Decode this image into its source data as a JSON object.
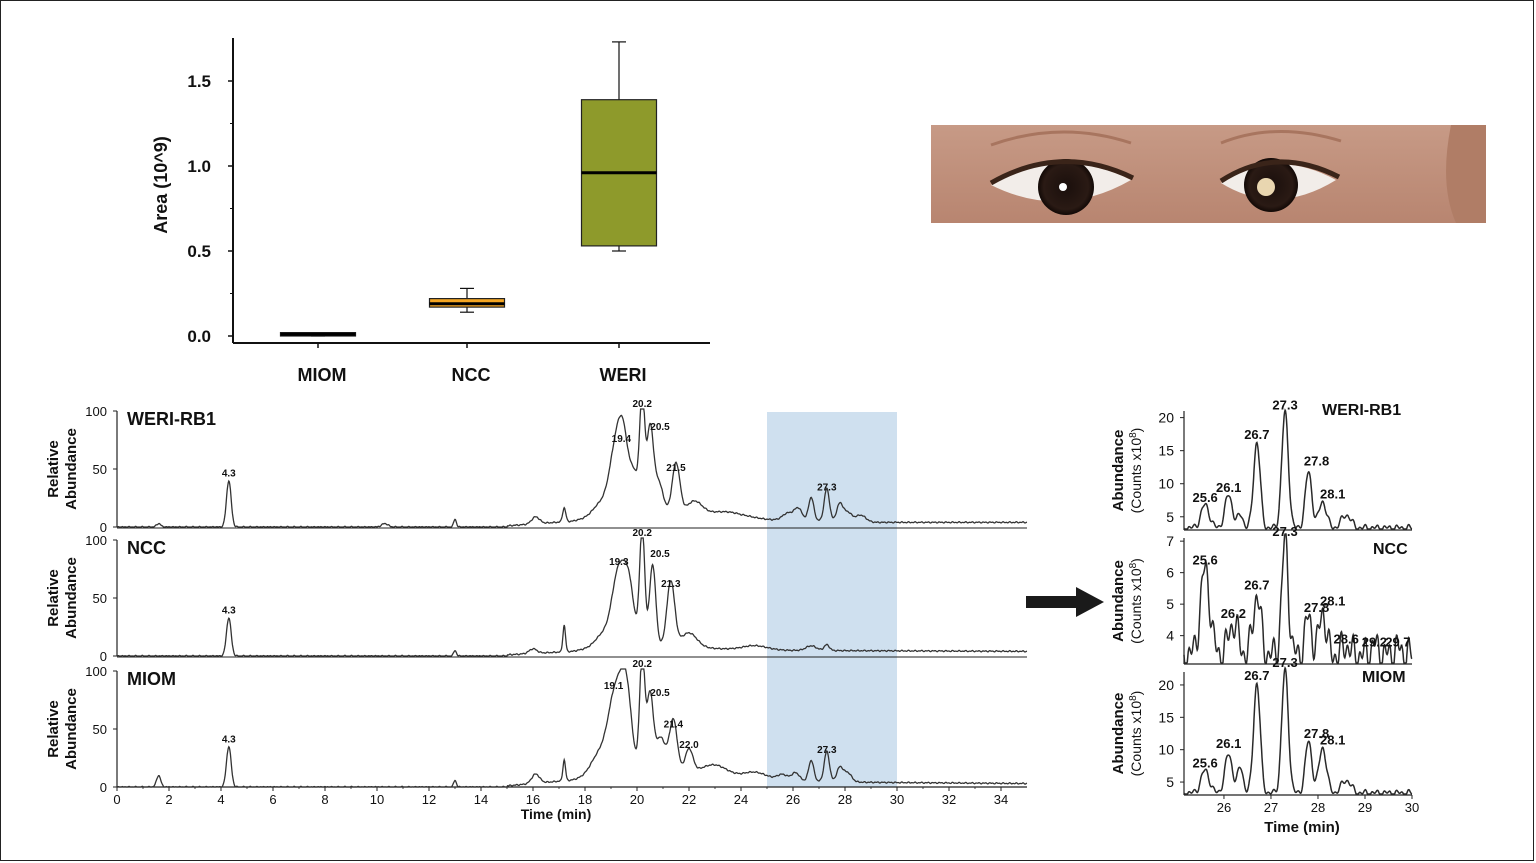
{
  "colors": {
    "miom_box": "#bfbfbf",
    "ncc_box": "#f5a623",
    "weri_box": "#8e9a2b",
    "highlight": "#cfe0ef",
    "trace": "#333333"
  },
  "photo": {
    "icon": "child-eyes-leukocoria-photo"
  },
  "arrow": {
    "icon": "right-arrow-icon"
  },
  "chart_data": [
    {
      "type": "box",
      "ylabel": "Area (10^9)",
      "ylim": [
        0,
        1.75
      ],
      "yticks": [
        "0.0",
        "0.5",
        "1.0",
        "1.5"
      ],
      "categories": [
        "MIOM",
        "NCC",
        "WERI"
      ],
      "boxes": [
        {
          "name": "MIOM",
          "min": 0.0,
          "q1": 0.0,
          "median": 0.01,
          "q3": 0.02,
          "max": 0.02
        },
        {
          "name": "NCC",
          "min": 0.14,
          "q1": 0.17,
          "median": 0.19,
          "q3": 0.22,
          "max": 0.28
        },
        {
          "name": "WERI",
          "min": 0.5,
          "q1": 0.53,
          "median": 0.96,
          "q3": 1.39,
          "max": 1.73
        }
      ]
    },
    {
      "type": "line",
      "xlabel": "Time (min)",
      "ylabel": "Relative Abundance",
      "xlim": [
        0,
        35
      ],
      "ylim": [
        0,
        100
      ],
      "xticks": [
        "0",
        "2",
        "4",
        "6",
        "8",
        "10",
        "12",
        "14",
        "16",
        "18",
        "20",
        "22",
        "24",
        "26",
        "28",
        "30",
        "32",
        "34"
      ],
      "yticks": [
        "0",
        "50",
        "100"
      ],
      "highlight_range": [
        25,
        30
      ],
      "panels": [
        {
          "name": "WERI-RB1",
          "peak_labels": [
            {
              "x": 4.3,
              "y": 40,
              "label": "4.3"
            },
            {
              "x": 19.4,
              "y": 70,
              "label": "19.4"
            },
            {
              "x": 20.2,
              "y": 100,
              "label": "20.2"
            },
            {
              "x": 20.5,
              "y": 80,
              "label": "20.5"
            },
            {
              "x": 21.5,
              "y": 45,
              "label": "21.5"
            },
            {
              "x": 27.3,
              "y": 28,
              "label": "27.3"
            }
          ],
          "peaks": [
            [
              1.6,
              3,
              0.08
            ],
            [
              4.3,
              40,
              0.09
            ],
            [
              10.3,
              3,
              0.12
            ],
            [
              13,
              7,
              0.05
            ],
            [
              16.1,
              6,
              0.15
            ],
            [
              17.2,
              12,
              0.06
            ],
            [
              18.6,
              10,
              0.3
            ],
            [
              19.2,
              55,
              0.25
            ],
            [
              19.5,
              50,
              0.2
            ],
            [
              19.9,
              30,
              0.15
            ],
            [
              20.2,
              100,
              0.1
            ],
            [
              20.5,
              68,
              0.12
            ],
            [
              20.8,
              30,
              0.2
            ],
            [
              21.5,
              45,
              0.15
            ],
            [
              22.2,
              12,
              0.3
            ],
            [
              23.5,
              7,
              0.8
            ],
            [
              25.8,
              6,
              0.2
            ],
            [
              26.2,
              10,
              0.15
            ],
            [
              26.7,
              20,
              0.1
            ],
            [
              27.3,
              28,
              0.1
            ],
            [
              27.8,
              15,
              0.12
            ],
            [
              28.1,
              8,
              0.15
            ],
            [
              28.6,
              6,
              0.2
            ]
          ],
          "baseline": [
            [
              15,
              1
            ],
            [
              17.5,
              5
            ],
            [
              19,
              12
            ],
            [
              22,
              9
            ],
            [
              24,
              5
            ],
            [
              26,
              6
            ],
            [
              29,
              4
            ],
            [
              35,
              4
            ]
          ]
        },
        {
          "name": "NCC",
          "peak_labels": [
            {
              "x": 4.3,
              "y": 33,
              "label": "4.3"
            },
            {
              "x": 19.3,
              "y": 75,
              "label": "19.3"
            },
            {
              "x": 20.2,
              "y": 100,
              "label": "20.2"
            },
            {
              "x": 20.5,
              "y": 82,
              "label": "20.5"
            },
            {
              "x": 21.3,
              "y": 56,
              "label": "21.3"
            }
          ],
          "peaks": [
            [
              4.3,
              33,
              0.09
            ],
            [
              13,
              5,
              0.05
            ],
            [
              16,
              4,
              0.15
            ],
            [
              17.2,
              23,
              0.05
            ],
            [
              18.7,
              10,
              0.3
            ],
            [
              19.3,
              62,
              0.25
            ],
            [
              19.7,
              45,
              0.2
            ],
            [
              20.2,
              100,
              0.1
            ],
            [
              20.6,
              70,
              0.12
            ],
            [
              21.3,
              56,
              0.15
            ],
            [
              22,
              12,
              0.3
            ],
            [
              24.5,
              4,
              0.5
            ],
            [
              26.7,
              4,
              0.2
            ],
            [
              27.3,
              5,
              0.1
            ]
          ],
          "baseline": [
            [
              15,
              1
            ],
            [
              17.5,
              4
            ],
            [
              19,
              10
            ],
            [
              22,
              8
            ],
            [
              24,
              5
            ],
            [
              35,
              4
            ]
          ]
        },
        {
          "name": "MIOM",
          "peak_labels": [
            {
              "x": 4.3,
              "y": 35,
              "label": "4.3"
            },
            {
              "x": 19.1,
              "y": 81,
              "label": "19.1"
            },
            {
              "x": 20.2,
              "y": 100,
              "label": "20.2"
            },
            {
              "x": 20.5,
              "y": 75,
              "label": "20.5"
            },
            {
              "x": 21.4,
              "y": 48,
              "label": "21.4"
            },
            {
              "x": 22.0,
              "y": 30,
              "label": "22.0"
            },
            {
              "x": 27.3,
              "y": 26,
              "label": "27.3"
            }
          ],
          "peaks": [
            [
              1.6,
              10,
              0.08
            ],
            [
              4.3,
              35,
              0.09
            ],
            [
              13,
              6,
              0.05
            ],
            [
              16.1,
              8,
              0.15
            ],
            [
              17.2,
              18,
              0.05
            ],
            [
              18.5,
              15,
              0.3
            ],
            [
              19.2,
              70,
              0.3
            ],
            [
              19.6,
              55,
              0.2
            ],
            [
              20.2,
              100,
              0.1
            ],
            [
              20.5,
              65,
              0.12
            ],
            [
              20.9,
              30,
              0.2
            ],
            [
              21.4,
              45,
              0.15
            ],
            [
              22.0,
              20,
              0.15
            ],
            [
              23,
              10,
              0.5
            ],
            [
              24.5,
              7,
              0.5
            ],
            [
              25.6,
              5,
              0.2
            ],
            [
              26.1,
              7,
              0.15
            ],
            [
              26.7,
              18,
              0.1
            ],
            [
              27.3,
              26,
              0.1
            ],
            [
              27.8,
              12,
              0.12
            ],
            [
              28.1,
              8,
              0.15
            ]
          ],
          "baseline": [
            [
              15,
              1
            ],
            [
              17.5,
              6
            ],
            [
              19,
              14
            ],
            [
              22,
              12
            ],
            [
              24,
              6
            ],
            [
              29,
              4
            ],
            [
              35,
              3
            ]
          ]
        }
      ]
    },
    {
      "type": "line",
      "xlabel": "Time (min)",
      "ylabel": "Abundance (Counts x10^8)",
      "xlim": [
        25,
        30
      ],
      "xticks": [
        "26",
        "27",
        "28",
        "29",
        "30"
      ],
      "panels": [
        {
          "name": "WERI-RB1",
          "ylim": [
            3,
            21
          ],
          "yticks": [
            "5",
            "10",
            "15",
            "20"
          ],
          "peak_labels": [
            {
              "x": 25.6,
              "y": 6.5,
              "label": "25.6"
            },
            {
              "x": 26.1,
              "y": 8,
              "label": "26.1"
            },
            {
              "x": 26.7,
              "y": 16,
              "label": "26.7"
            },
            {
              "x": 27.3,
              "y": 20.5,
              "label": "27.3"
            },
            {
              "x": 27.8,
              "y": 12,
              "label": "27.8"
            },
            {
              "x": 28.1,
              "y": 7,
              "label": "28.1"
            }
          ],
          "peaks": [
            [
              25.6,
              3.5,
              0.09
            ],
            [
              26.1,
              5,
              0.08
            ],
            [
              26.35,
              2,
              0.06
            ],
            [
              26.7,
              13,
              0.07
            ],
            [
              27.3,
              17.5,
              0.07
            ],
            [
              27.8,
              8.5,
              0.07
            ],
            [
              28.1,
              4,
              0.08
            ],
            [
              28.6,
              2,
              0.1
            ]
          ],
          "base": 3.3
        },
        {
          "name": "NCC",
          "ylim": [
            3.1,
            7.1
          ],
          "yticks": [
            "4",
            "5",
            "6",
            "7"
          ],
          "peak_labels": [
            {
              "x": 25.6,
              "y": 6.1,
              "label": "25.6"
            },
            {
              "x": 26.2,
              "y": 4.4,
              "label": "26.2"
            },
            {
              "x": 26.7,
              "y": 5.3,
              "label": "26.7"
            },
            {
              "x": 27.3,
              "y": 7.0,
              "label": "27.3"
            },
            {
              "x": 27.8,
              "y": 4.6,
              "label": "27.8"
            },
            {
              "x": 28.1,
              "y": 4.8,
              "label": "28.1"
            },
            {
              "x": 28.6,
              "y": 3.6,
              "label": "28.6"
            },
            {
              "x": 29.2,
              "y": 3.5,
              "label": "29.2"
            },
            {
              "x": 29.7,
              "y": 3.5,
              "label": "29.7"
            }
          ],
          "peaks": [
            [
              25.6,
              2.7,
              0.1
            ],
            [
              26.2,
              1.0,
              0.1
            ],
            [
              26.7,
              1.9,
              0.08
            ],
            [
              27.3,
              3.6,
              0.07
            ],
            [
              27.8,
              1.2,
              0.07
            ],
            [
              28.1,
              1.4,
              0.07
            ],
            [
              28.6,
              0.3,
              0.08
            ],
            [
              29.2,
              0.3,
              0.07
            ],
            [
              29.7,
              0.2,
              0.07
            ]
          ],
          "base": 3.4
        },
        {
          "name": "MIOM",
          "ylim": [
            3,
            22
          ],
          "yticks": [
            "5",
            "10",
            "15",
            "20"
          ],
          "peak_labels": [
            {
              "x": 25.6,
              "y": 6.5,
              "label": "25.6"
            },
            {
              "x": 26.1,
              "y": 9.5,
              "label": "26.1"
            },
            {
              "x": 26.7,
              "y": 20,
              "label": "26.7"
            },
            {
              "x": 27.3,
              "y": 22,
              "label": "27.3"
            },
            {
              "x": 27.8,
              "y": 11,
              "label": "27.8"
            },
            {
              "x": 28.1,
              "y": 10,
              "label": "28.1"
            }
          ],
          "peaks": [
            [
              25.6,
              3.5,
              0.09
            ],
            [
              26.1,
              6,
              0.08
            ],
            [
              26.35,
              4,
              0.06
            ],
            [
              26.7,
              17,
              0.07
            ],
            [
              27.3,
              19,
              0.07
            ],
            [
              27.8,
              8,
              0.07
            ],
            [
              28.1,
              7,
              0.08
            ],
            [
              28.6,
              2,
              0.1
            ]
          ],
          "base": 3.3
        }
      ]
    }
  ]
}
